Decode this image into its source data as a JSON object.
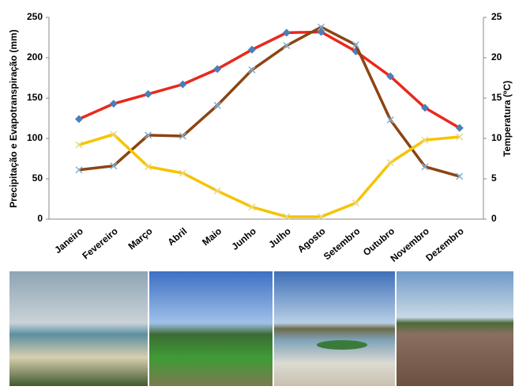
{
  "chart_data": {
    "type": "line",
    "y_label": "Precipitação e Evapotranspiração  (mm)",
    "y2_label": "Temperatura  (ºC)",
    "categories": [
      "Janeiro",
      "Fevereiro",
      "Março",
      "Abril",
      "Maio",
      "Junho",
      "Julho",
      "Agosto",
      "Setembro",
      "Outubro",
      "Novembro",
      "Dezembro"
    ],
    "series": [
      {
        "color": "#e8291c",
        "marker": "diamond",
        "marker_color": "#4a7ebb",
        "axis": "y2",
        "values": [
          12.4,
          14.3,
          15.5,
          16.7,
          18.6,
          21.0,
          23.1,
          23.2,
          20.8,
          17.7,
          13.8,
          11.3
        ]
      },
      {
        "color": "#8b4513",
        "marker": "x",
        "marker_color": "#7fb2d9",
        "values": [
          61,
          66,
          104,
          103,
          141,
          185,
          215,
          238,
          216,
          123,
          65,
          53
        ]
      },
      {
        "color": "#f5c400",
        "marker": "x",
        "marker_color": "#e6d98a",
        "values": [
          92,
          105,
          65,
          57,
          35,
          15,
          3,
          3,
          20,
          70,
          98,
          102
        ]
      }
    ],
    "ylim": [
      0,
      250
    ],
    "yticks": [
      0,
      50,
      100,
      150,
      200,
      250
    ],
    "y2lim": [
      0,
      25
    ],
    "y2ticks": [
      0,
      5,
      10,
      15,
      20,
      25
    ]
  }
}
